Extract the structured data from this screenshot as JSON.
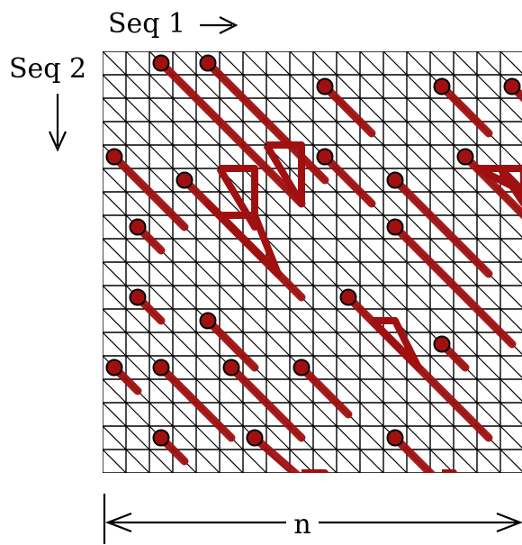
{
  "labels": {
    "seq1": "Seq 1",
    "seq2": "Seq 2",
    "length": "n"
  },
  "colors": {
    "grid": "#000000",
    "path": "#a01010",
    "start_dot": "#a01010"
  },
  "grid": {
    "cols": 18,
    "rows": 18
  },
  "paths": [
    [
      [
        2.5,
        0.5
      ],
      [
        8.5,
        6.5
      ]
    ],
    [
      [
        4.5,
        0.5
      ],
      [
        9.5,
        5.5
      ]
    ],
    [
      [
        9.5,
        1.5
      ],
      [
        11.5,
        3.5
      ]
    ],
    [
      [
        14.5,
        1.5
      ],
      [
        16.5,
        3.5
      ]
    ],
    [
      [
        17.5,
        1.5
      ],
      [
        19,
        3
      ]
    ],
    [
      [
        0.5,
        4.5
      ],
      [
        3.5,
        7.5
      ]
    ],
    [
      [
        9.5,
        4.5
      ],
      [
        11.5,
        6.5
      ]
    ],
    [
      [
        15.5,
        4.5
      ],
      [
        19,
        8
      ]
    ],
    [
      [
        3.5,
        5.5
      ],
      [
        8.5,
        10.5
      ]
    ],
    [
      [
        12.5,
        5.5
      ],
      [
        16.5,
        9.5
      ]
    ],
    [
      [
        1.5,
        7.5
      ],
      [
        2.5,
        8.5
      ]
    ],
    [
      [
        12.5,
        7.5
      ],
      [
        17.5,
        12.5
      ]
    ],
    [
      [
        4.5,
        6.5
      ],
      [
        7.5,
        9.5
      ]
    ],
    [
      [
        1.5,
        10.5
      ],
      [
        2.5,
        11.5
      ]
    ],
    [
      [
        10.5,
        10.5
      ],
      [
        16.5,
        16.5
      ]
    ],
    [
      [
        4.5,
        11.5
      ],
      [
        6.5,
        13.5
      ]
    ],
    [
      [
        14.5,
        12.5
      ],
      [
        15.5,
        13.5
      ]
    ],
    [
      [
        0.5,
        13.5
      ],
      [
        1.5,
        14.5
      ]
    ],
    [
      [
        2.5,
        13.5
      ],
      [
        5.5,
        16.5
      ]
    ],
    [
      [
        5.5,
        13.5
      ],
      [
        8.5,
        16.5
      ]
    ],
    [
      [
        8.5,
        13.5
      ],
      [
        10.5,
        15.5
      ]
    ],
    [
      [
        2.5,
        16.5
      ],
      [
        3.5,
        17.5
      ]
    ],
    [
      [
        6.5,
        16.5
      ],
      [
        10.5,
        20
      ]
    ],
    [
      [
        12.5,
        16.5
      ],
      [
        15.5,
        19.5
      ]
    ]
  ],
  "branches": [
    [
      [
        7,
        4
      ],
      [
        8.5,
        4
      ],
      [
        8.5,
        6.5
      ],
      [
        7,
        4
      ]
    ],
    [
      [
        5,
        5
      ],
      [
        6.5,
        5
      ],
      [
        6.5,
        7.5
      ],
      [
        5,
        5
      ]
    ],
    [
      [
        5,
        7
      ],
      [
        6.5,
        7
      ],
      [
        7.5,
        9.5
      ],
      [
        5,
        7
      ]
    ],
    [
      [
        11.5,
        11.5
      ],
      [
        12.5,
        11.5
      ],
      [
        13.5,
        13.5
      ],
      [
        11.5,
        11.5
      ]
    ],
    [
      [
        8.5,
        18
      ],
      [
        9.5,
        18
      ],
      [
        9.5,
        19
      ],
      [
        8.5,
        18
      ]
    ],
    [
      [
        14.5,
        18
      ],
      [
        15,
        18
      ],
      [
        15.5,
        19.5
      ],
      [
        14.5,
        18.5
      ]
    ],
    [
      [
        17,
        5
      ],
      [
        18,
        5
      ],
      [
        18,
        6.5
      ],
      [
        17,
        5
      ]
    ],
    [
      [
        16,
        5
      ],
      [
        17,
        5
      ],
      [
        18,
        6
      ],
      [
        16,
        5
      ]
    ]
  ],
  "starts": [
    [
      2.5,
      0.5
    ],
    [
      4.5,
      0.5
    ],
    [
      9.5,
      1.5
    ],
    [
      14.5,
      1.5
    ],
    [
      17.5,
      1.5
    ],
    [
      0.5,
      4.5
    ],
    [
      9.5,
      4.5
    ],
    [
      15.5,
      4.5
    ],
    [
      3.5,
      5.5
    ],
    [
      12.5,
      5.5
    ],
    [
      1.5,
      7.5
    ],
    [
      12.5,
      7.5
    ],
    [
      1.5,
      10.5
    ],
    [
      10.5,
      10.5
    ],
    [
      4.5,
      11.5
    ],
    [
      14.5,
      12.5
    ],
    [
      0.5,
      13.5
    ],
    [
      2.5,
      13.5
    ],
    [
      5.5,
      13.5
    ],
    [
      8.5,
      13.5
    ],
    [
      2.5,
      16.5
    ],
    [
      6.5,
      16.5
    ],
    [
      12.5,
      16.5
    ]
  ]
}
